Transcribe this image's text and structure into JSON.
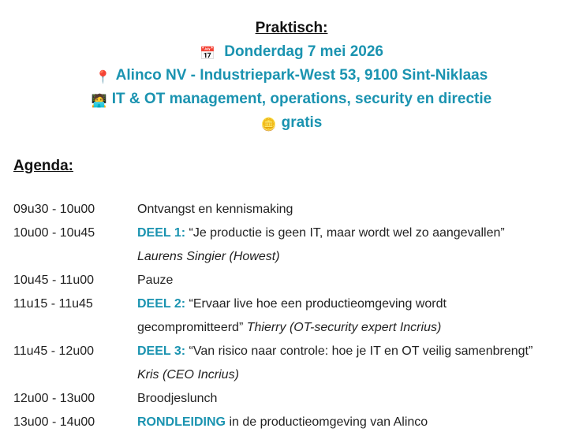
{
  "praktisch": {
    "title": "Praktisch:",
    "items": [
      {
        "icon": "calendar-icon",
        "glyph": "📅",
        "text": "Donderdag 7 mei 2026"
      },
      {
        "icon": "pin-icon",
        "glyph": "📍",
        "text": "Alinco NV - Industriepark-West 53, 9100 Sint-Niklaas"
      },
      {
        "icon": "person-laptop-icon",
        "glyph": "🧑‍💻",
        "text": "IT & OT management, operations, security en directie"
      },
      {
        "icon": "coin-icon",
        "glyph": "🪙",
        "text": "gratis"
      }
    ],
    "accent": "#1a93b0"
  },
  "agenda": {
    "title": "Agenda:",
    "rows": [
      {
        "time": "09u30 - 10u00",
        "text": "Ontvangst en kennismaking"
      },
      {
        "time": "10u00 - 10u45",
        "label": "DEEL 1:",
        "text": " “Je productie is geen IT, maar wordt wel zo aangevallen”",
        "speaker": "Laurens Singier (Howest)"
      },
      {
        "time": "10u45 - 11u00",
        "text": "Pauze"
      },
      {
        "time": "11u15 - 11u45",
        "label": "DEEL 2:",
        "text": " “Ervaar live hoe een productieomgeving wordt gecompromitteerd” ",
        "speaker": "Thierry (OT-security expert Incrius)"
      },
      {
        "time": "11u45 - 12u00",
        "label": "DEEL 3:",
        "text": " “Van risico naar controle: hoe je IT en OT veilig samenbrengt”",
        "speaker": "Kris (CEO Incrius)"
      },
      {
        "time": "12u00 - 13u00",
        "text": "Broodjeslunch"
      },
      {
        "time": "13u00 - 14u00",
        "label": "RONDLEIDING",
        "text": " in de productieomgeving van Alinco"
      }
    ]
  }
}
